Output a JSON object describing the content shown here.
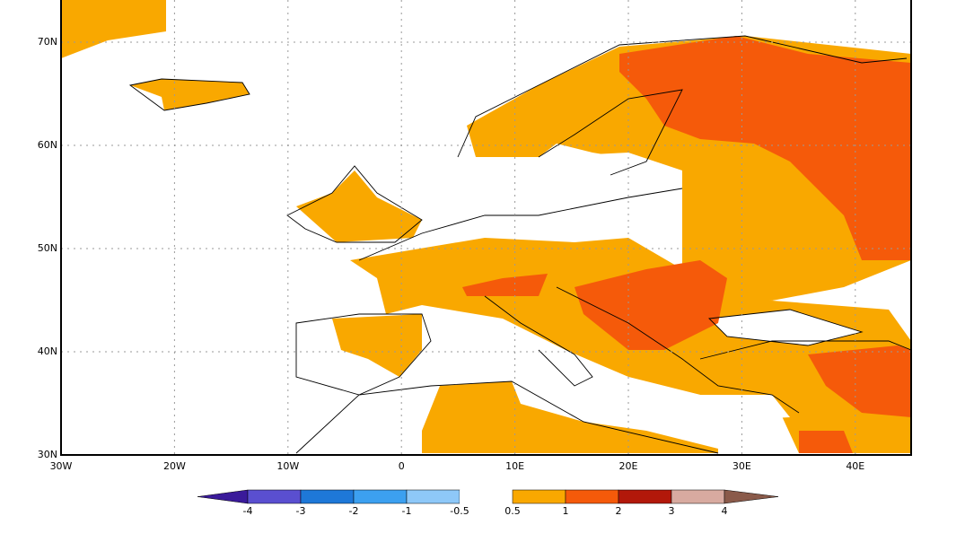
{
  "map": {
    "latitude_labels": [
      "70N",
      "60N",
      "50N",
      "40N",
      "30N"
    ],
    "longitude_labels": [
      "30W",
      "20W",
      "10W",
      "0",
      "10E",
      "20E",
      "30E",
      "40E"
    ],
    "colorbar": {
      "labels": [
        "-4",
        "-3",
        "-2",
        "-1",
        "-0.5",
        "0.5",
        "1",
        "2",
        "3",
        "4"
      ],
      "colors": [
        "#3a1a9a",
        "#5a4fd0",
        "#1e78d8",
        "#3ca0f0",
        "#8ec8f8",
        "#ffffff",
        "#f9a800",
        "#f55a0a",
        "#b2180a",
        "#d8aaa0",
        "#8a5a4a"
      ]
    }
  }
}
